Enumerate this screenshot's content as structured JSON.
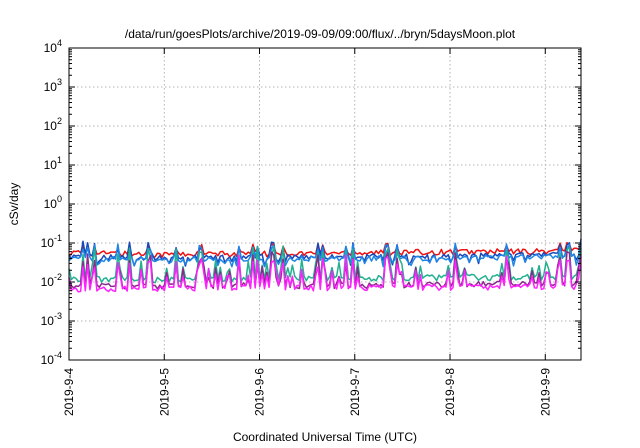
{
  "chart_data": {
    "type": "line",
    "title": "/data/run/goesPlots/archive/2019-09-09/09:00/flux/../bryn/5daysMoon.plot",
    "xlabel": "Coordinated Universal Time (UTC)",
    "ylabel": "cSv/day",
    "yscale": "log",
    "ylim": [
      0.0001,
      10000
    ],
    "xlim": [
      "2019-09-04T00:00",
      "2019-09-09T09:00"
    ],
    "y_ticks": [
      {
        "base": "10",
        "exp": "-4",
        "value": 0.0001
      },
      {
        "base": "10",
        "exp": "-3",
        "value": 0.001
      },
      {
        "base": "10",
        "exp": "-2",
        "value": 0.01
      },
      {
        "base": "10",
        "exp": "-1",
        "value": 0.1
      },
      {
        "base": "10",
        "exp": "0",
        "value": 1
      },
      {
        "base": "10",
        "exp": "1",
        "value": 10
      },
      {
        "base": "10",
        "exp": "2",
        "value": 100
      },
      {
        "base": "10",
        "exp": "3",
        "value": 1000
      },
      {
        "base": "10",
        "exp": "4",
        "value": 10000
      }
    ],
    "x_ticks": [
      "2019-9-4",
      "2019-9-5",
      "2019-9-6",
      "2019-9-7",
      "2019-9-8",
      "2019-9-9"
    ],
    "grid": true,
    "series": [
      {
        "color": "#ee1111",
        "x": [
          "2019-09-04",
          "2019-09-05",
          "2019-09-06",
          "2019-09-07",
          "2019-09-08",
          "2019-09-09",
          "2019-09-09T09:00"
        ],
        "values": [
          0.055,
          0.05,
          0.052,
          0.055,
          0.058,
          0.06,
          0.065
        ]
      },
      {
        "color": "#1a47b8",
        "x": [
          "2019-09-04",
          "2019-09-05",
          "2019-09-06",
          "2019-09-07",
          "2019-09-08",
          "2019-09-09",
          "2019-09-09T09:00"
        ],
        "values": [
          0.045,
          0.042,
          0.044,
          0.045,
          0.048,
          0.05,
          0.052
        ]
      },
      {
        "color": "#1f86e6",
        "x": [
          "2019-09-04",
          "2019-09-05",
          "2019-09-06",
          "2019-09-07",
          "2019-09-08",
          "2019-09-09",
          "2019-09-09T09:00"
        ],
        "values": [
          0.04,
          0.038,
          0.04,
          0.04,
          0.042,
          0.044,
          0.046
        ]
      },
      {
        "color": "#22b090",
        "x": [
          "2019-09-04",
          "2019-09-05",
          "2019-09-06",
          "2019-09-07",
          "2019-09-08",
          "2019-09-09",
          "2019-09-09T09:00"
        ],
        "values": [
          0.012,
          0.011,
          0.012,
          0.012,
          0.013,
          0.013,
          0.014
        ]
      },
      {
        "color": "#8a2a8a",
        "x": [
          "2019-09-04",
          "2019-09-05",
          "2019-09-06",
          "2019-09-07",
          "2019-09-08",
          "2019-09-09",
          "2019-09-09T09:00"
        ],
        "values": [
          0.008,
          0.0075,
          0.008,
          0.008,
          0.0085,
          0.009,
          0.009
        ]
      },
      {
        "color": "#ff22ff",
        "x": [
          "2019-09-04",
          "2019-09-05",
          "2019-09-06",
          "2019-09-07",
          "2019-09-08",
          "2019-09-09",
          "2019-09-09T09:00"
        ],
        "values": [
          0.0065,
          0.0065,
          0.007,
          0.007,
          0.0072,
          0.0075,
          0.0075
        ]
      }
    ]
  }
}
